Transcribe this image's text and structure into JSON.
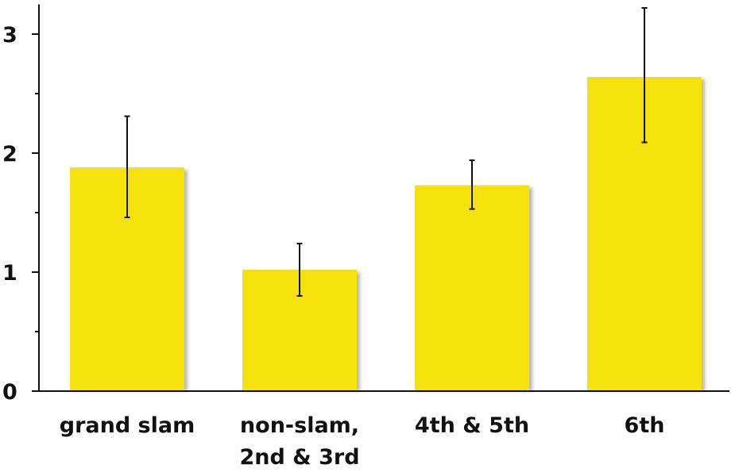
{
  "chart_data": {
    "type": "bar",
    "title": "",
    "xlabel": "",
    "ylabel": "",
    "categories": [
      [
        "grand slam"
      ],
      [
        "non-slam,",
        "2nd & 3rd"
      ],
      [
        "4th & 5th"
      ],
      [
        "6th"
      ]
    ],
    "values": [
      1.88,
      1.02,
      1.73,
      2.64
    ],
    "error_low": [
      1.46,
      0.8,
      1.53,
      2.09
    ],
    "error_high": [
      2.31,
      1.24,
      1.94,
      3.22
    ],
    "ylim": [
      0,
      3.25
    ],
    "yticks": [
      0,
      1,
      2,
      3
    ],
    "ytick_labels": [
      "0",
      "1",
      "2",
      "3"
    ],
    "minor_yticks": [
      0.5,
      1.5,
      2.5
    ],
    "grid": false,
    "legend": "none",
    "colors": {
      "bar": "#f5e20c",
      "bar_shadow": "#b8b8b8",
      "axis": "#111111",
      "error_bar": "#111111"
    }
  }
}
